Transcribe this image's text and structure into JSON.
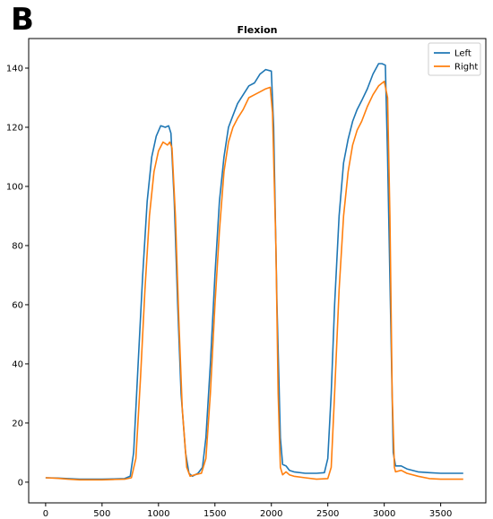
{
  "panel_label": "B",
  "chart_data": {
    "type": "line",
    "title": "Flexion",
    "xlabel": "",
    "ylabel": "",
    "xlim": [
      -150,
      3900
    ],
    "ylim": [
      -7,
      150
    ],
    "xticks": [
      0,
      500,
      1000,
      1500,
      2000,
      2500,
      3000,
      3500
    ],
    "yticks": [
      0,
      20,
      40,
      60,
      80,
      100,
      120,
      140
    ],
    "grid": false,
    "legend": "top-right",
    "series": [
      {
        "name": "Left",
        "color": "#1f77b4",
        "points": [
          [
            0,
            1.5
          ],
          [
            100,
            1.4
          ],
          [
            200,
            1.2
          ],
          [
            300,
            1.0
          ],
          [
            400,
            1.0
          ],
          [
            500,
            1.0
          ],
          [
            600,
            1.1
          ],
          [
            700,
            1.2
          ],
          [
            750,
            2.0
          ],
          [
            780,
            10
          ],
          [
            820,
            40
          ],
          [
            860,
            70
          ],
          [
            900,
            95
          ],
          [
            940,
            110
          ],
          [
            980,
            117
          ],
          [
            1020,
            120.5
          ],
          [
            1060,
            120
          ],
          [
            1090,
            120.5
          ],
          [
            1110,
            118
          ],
          [
            1140,
            95
          ],
          [
            1170,
            60
          ],
          [
            1200,
            30
          ],
          [
            1240,
            10
          ],
          [
            1270,
            3
          ],
          [
            1300,
            2.0
          ],
          [
            1350,
            3
          ],
          [
            1390,
            5
          ],
          [
            1420,
            15
          ],
          [
            1460,
            40
          ],
          [
            1500,
            70
          ],
          [
            1540,
            95
          ],
          [
            1580,
            110
          ],
          [
            1620,
            120
          ],
          [
            1660,
            124
          ],
          [
            1700,
            128
          ],
          [
            1750,
            131
          ],
          [
            1800,
            134
          ],
          [
            1850,
            135
          ],
          [
            1900,
            138
          ],
          [
            1950,
            139.5
          ],
          [
            2000,
            139
          ],
          [
            2020,
            120
          ],
          [
            2050,
            60
          ],
          [
            2080,
            15
          ],
          [
            2100,
            6
          ],
          [
            2130,
            5.5
          ],
          [
            2160,
            4
          ],
          [
            2200,
            3.5
          ],
          [
            2300,
            3
          ],
          [
            2400,
            3
          ],
          [
            2470,
            3.2
          ],
          [
            2500,
            8
          ],
          [
            2530,
            30
          ],
          [
            2560,
            60
          ],
          [
            2600,
            90
          ],
          [
            2640,
            108
          ],
          [
            2680,
            116
          ],
          [
            2720,
            122
          ],
          [
            2760,
            126
          ],
          [
            2800,
            129
          ],
          [
            2850,
            133
          ],
          [
            2900,
            138
          ],
          [
            2950,
            141.5
          ],
          [
            2980,
            141.5
          ],
          [
            3010,
            141
          ],
          [
            3030,
            110
          ],
          [
            3060,
            50
          ],
          [
            3080,
            10
          ],
          [
            3100,
            5.5
          ],
          [
            3150,
            5.5
          ],
          [
            3200,
            4.5
          ],
          [
            3300,
            3.5
          ],
          [
            3400,
            3.2
          ],
          [
            3500,
            3.0
          ],
          [
            3600,
            3.0
          ],
          [
            3700,
            3.0
          ]
        ]
      },
      {
        "name": "Right",
        "color": "#ff7f0e",
        "points": [
          [
            0,
            1.5
          ],
          [
            100,
            1.3
          ],
          [
            200,
            1.0
          ],
          [
            300,
            0.8
          ],
          [
            400,
            0.8
          ],
          [
            500,
            0.8
          ],
          [
            600,
            0.9
          ],
          [
            700,
            1.0
          ],
          [
            760,
            1.5
          ],
          [
            800,
            8
          ],
          [
            840,
            35
          ],
          [
            880,
            65
          ],
          [
            920,
            90
          ],
          [
            960,
            105
          ],
          [
            1000,
            112
          ],
          [
            1040,
            115
          ],
          [
            1080,
            114
          ],
          [
            1100,
            115
          ],
          [
            1120,
            113
          ],
          [
            1150,
            90
          ],
          [
            1180,
            55
          ],
          [
            1210,
            25
          ],
          [
            1250,
            5
          ],
          [
            1280,
            2
          ],
          [
            1320,
            2.5
          ],
          [
            1380,
            3
          ],
          [
            1420,
            8
          ],
          [
            1460,
            30
          ],
          [
            1500,
            60
          ],
          [
            1540,
            85
          ],
          [
            1580,
            105
          ],
          [
            1620,
            115
          ],
          [
            1660,
            120
          ],
          [
            1700,
            123
          ],
          [
            1750,
            126
          ],
          [
            1800,
            130
          ],
          [
            1850,
            131
          ],
          [
            1900,
            132
          ],
          [
            1950,
            133
          ],
          [
            1990,
            133.5
          ],
          [
            2010,
            125
          ],
          [
            2040,
            80
          ],
          [
            2060,
            30
          ],
          [
            2080,
            5
          ],
          [
            2100,
            2.5
          ],
          [
            2130,
            3.5
          ],
          [
            2160,
            2.5
          ],
          [
            2200,
            2
          ],
          [
            2300,
            1.5
          ],
          [
            2400,
            1.0
          ],
          [
            2500,
            1.2
          ],
          [
            2530,
            5
          ],
          [
            2560,
            30
          ],
          [
            2600,
            65
          ],
          [
            2640,
            90
          ],
          [
            2680,
            105
          ],
          [
            2720,
            114
          ],
          [
            2760,
            119
          ],
          [
            2800,
            122
          ],
          [
            2850,
            127
          ],
          [
            2900,
            131
          ],
          [
            2950,
            134
          ],
          [
            3000,
            135.5
          ],
          [
            3030,
            130
          ],
          [
            3050,
            90
          ],
          [
            3070,
            30
          ],
          [
            3090,
            5
          ],
          [
            3100,
            3.5
          ],
          [
            3150,
            4
          ],
          [
            3200,
            3
          ],
          [
            3300,
            2
          ],
          [
            3400,
            1.2
          ],
          [
            3500,
            1.0
          ],
          [
            3600,
            1.0
          ],
          [
            3700,
            1.0
          ]
        ]
      }
    ]
  }
}
